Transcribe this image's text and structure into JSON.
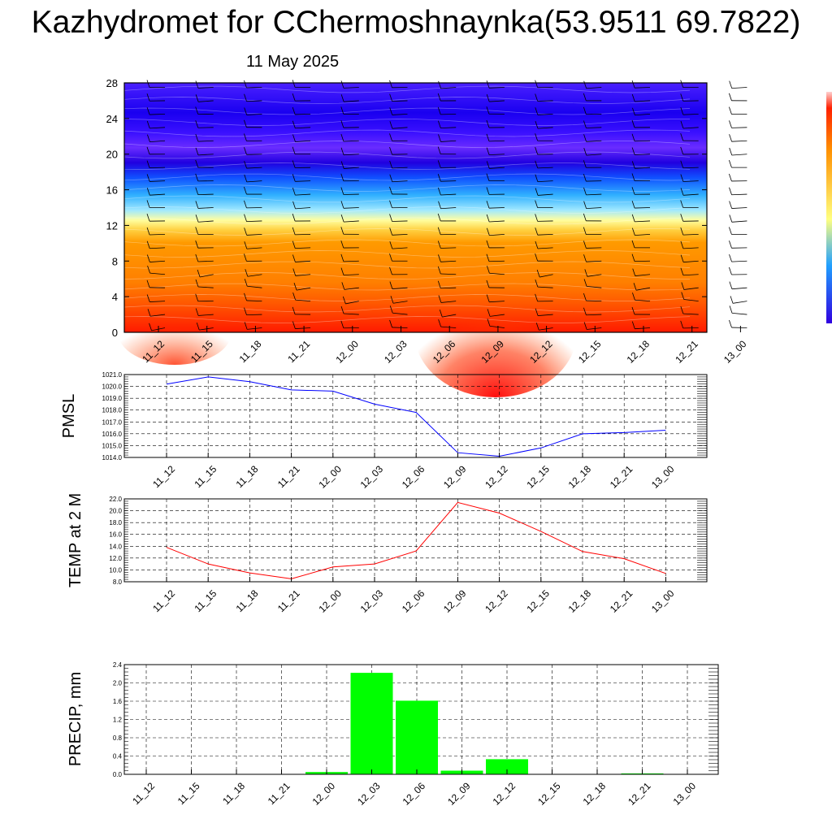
{
  "title": "Kazhydromet for CChermoshnaynka(53.9511 69.7822)",
  "subtitle": "11 May 2025",
  "time_labels": [
    "11_12",
    "11_15",
    "11_18",
    "11_21",
    "12_00",
    "12_03",
    "12_06",
    "12_09",
    "12_12",
    "12_15",
    "12_18",
    "12_21",
    "13_00"
  ],
  "chart_data": [
    {
      "type": "heatmap",
      "title": "",
      "ylabel": "",
      "yticks": [
        "0",
        "4",
        "8",
        "12",
        "16",
        "20",
        "24",
        "28"
      ],
      "ylim": [
        0,
        28
      ],
      "colors": {
        "low": "#ff1a00",
        "warm": "#ff7f00",
        "mid": "#ffff90",
        "cool": "#30c8ff",
        "cold": "#2000e0",
        "top": "#5a20ff"
      },
      "description_fields": "vertical cross-section, warm layer below 12, cold layer above, wind barbs overlaid"
    },
    {
      "type": "line",
      "ylabel": "PMSL",
      "yticks": [
        "1014.0",
        "1015.0",
        "1016.0",
        "1017.0",
        "1018.0",
        "1019.0",
        "1020.0",
        "1021.0"
      ],
      "ylim": [
        1014,
        1021
      ],
      "color": "#0000ff",
      "values": [
        1020.2,
        1020.8,
        1020.4,
        1019.7,
        1019.6,
        1018.5,
        1017.8,
        1014.4,
        1014.1,
        1014.8,
        1016.0,
        1016.1,
        1016.3
      ]
    },
    {
      "type": "line",
      "ylabel": "TEMP at 2 M",
      "yticks": [
        "8.0",
        "10.0",
        "12.0",
        "14.0",
        "16.0",
        "18.0",
        "20.0",
        "22.0"
      ],
      "ylim": [
        8,
        22
      ],
      "color": "#ff0000",
      "values": [
        13.8,
        11.0,
        9.5,
        8.5,
        10.5,
        11.0,
        13.2,
        21.4,
        19.6,
        16.5,
        13.1,
        11.9,
        9.4
      ]
    },
    {
      "type": "bar",
      "ylabel": "PRECIP, mm",
      "yticks": [
        "0.0",
        "0.4",
        "0.8",
        "1.2",
        "1.6",
        "2.0",
        "2.4"
      ],
      "ylim": [
        0,
        2.4
      ],
      "color": "#00ff00",
      "values": [
        0.0,
        0.0,
        0.0,
        0.0,
        0.05,
        2.22,
        1.61,
        0.08,
        0.33,
        0.0,
        0.0,
        0.02,
        0.0
      ]
    }
  ]
}
